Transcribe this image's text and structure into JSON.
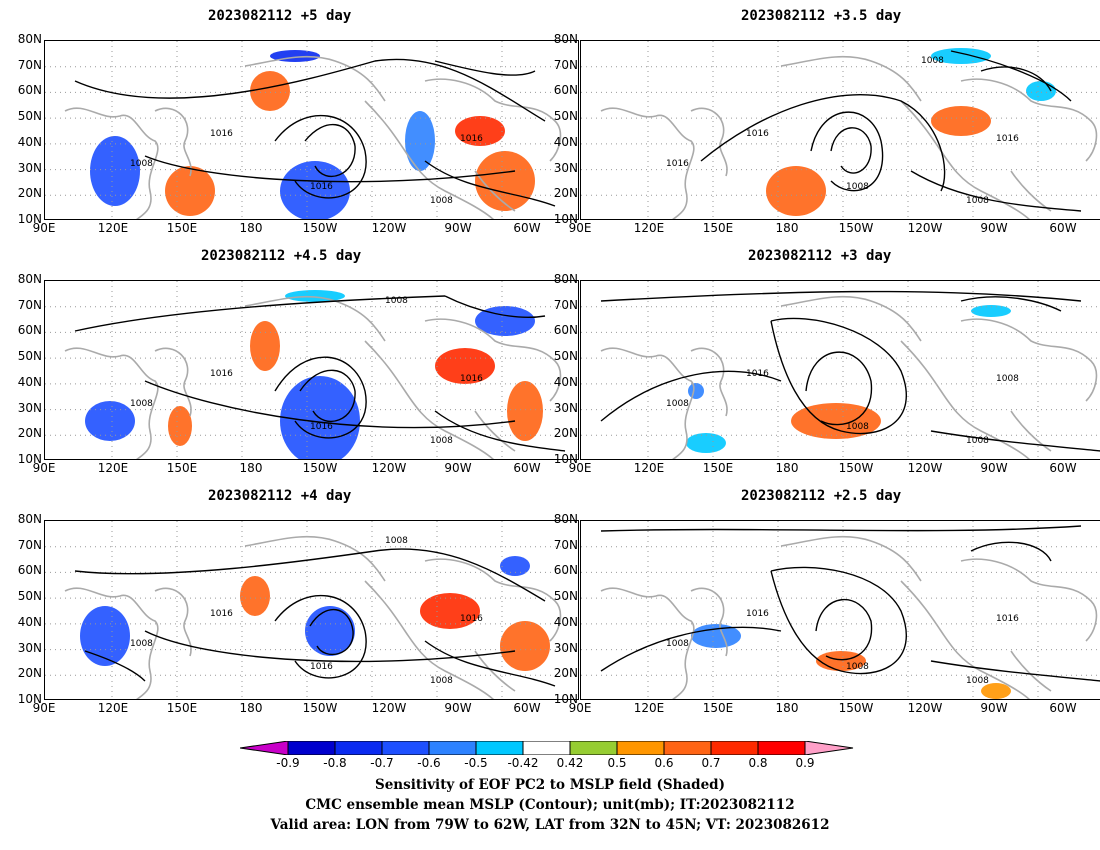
{
  "panels": [
    {
      "title": "2023082112  +5 day",
      "contour_labels": [
        "1008",
        "1016",
        "1016",
        "1008",
        "1016"
      ]
    },
    {
      "title": "2023082112  +3.5 day",
      "contour_labels": [
        "1016",
        "1016",
        "1008",
        "1008",
        "1016",
        "1008"
      ]
    },
    {
      "title": "2023082112  +4.5 day",
      "contour_labels": [
        "1008",
        "1016",
        "1016",
        "1008",
        "1016",
        "1008"
      ]
    },
    {
      "title": "2023082112  +3 day",
      "contour_labels": [
        "1008",
        "1016",
        "1008",
        "1008",
        "1008"
      ]
    },
    {
      "title": "2023082112  +4 day",
      "contour_labels": [
        "1008",
        "1016",
        "1016",
        "1008",
        "1016",
        "1008"
      ]
    },
    {
      "title": "2023082112  +2.5 day",
      "contour_labels": [
        "1008",
        "1016",
        "1008",
        "1008",
        "1016"
      ]
    }
  ],
  "lat_ticks": [
    "80N",
    "70N",
    "60N",
    "50N",
    "40N",
    "30N",
    "20N",
    "10N"
  ],
  "lon_ticks": [
    "90E",
    "120E",
    "150E",
    "180",
    "150W",
    "120W",
    "90W",
    "60W"
  ],
  "colorbar": {
    "labels": [
      "-0.9",
      "-0.8",
      "-0.7",
      "-0.6",
      "-0.5",
      "-0.42",
      "0.42",
      "0.5",
      "0.6",
      "0.7",
      "0.8",
      "0.9"
    ],
    "colors": [
      "#0000cd",
      "#0a2af0",
      "#1e50ff",
      "#2d82ff",
      "#00c8ff",
      "#ffffff",
      "#96cd32",
      "#ff9600",
      "#ff6414",
      "#ff2a00",
      "#ff0000"
    ],
    "low_extend": "#c800c8",
    "high_extend": "#ffa0c8"
  },
  "footer": {
    "line1": "Sensitivity of EOF PC2 to MSLP field (Shaded)",
    "line2": "CMC ensemble mean MSLP (Contour); unit(mb); IT:2023082112",
    "line3": "Valid area: LON from 79W to 62W, LAT from 32N to 45N; VT: 2023082612"
  }
}
